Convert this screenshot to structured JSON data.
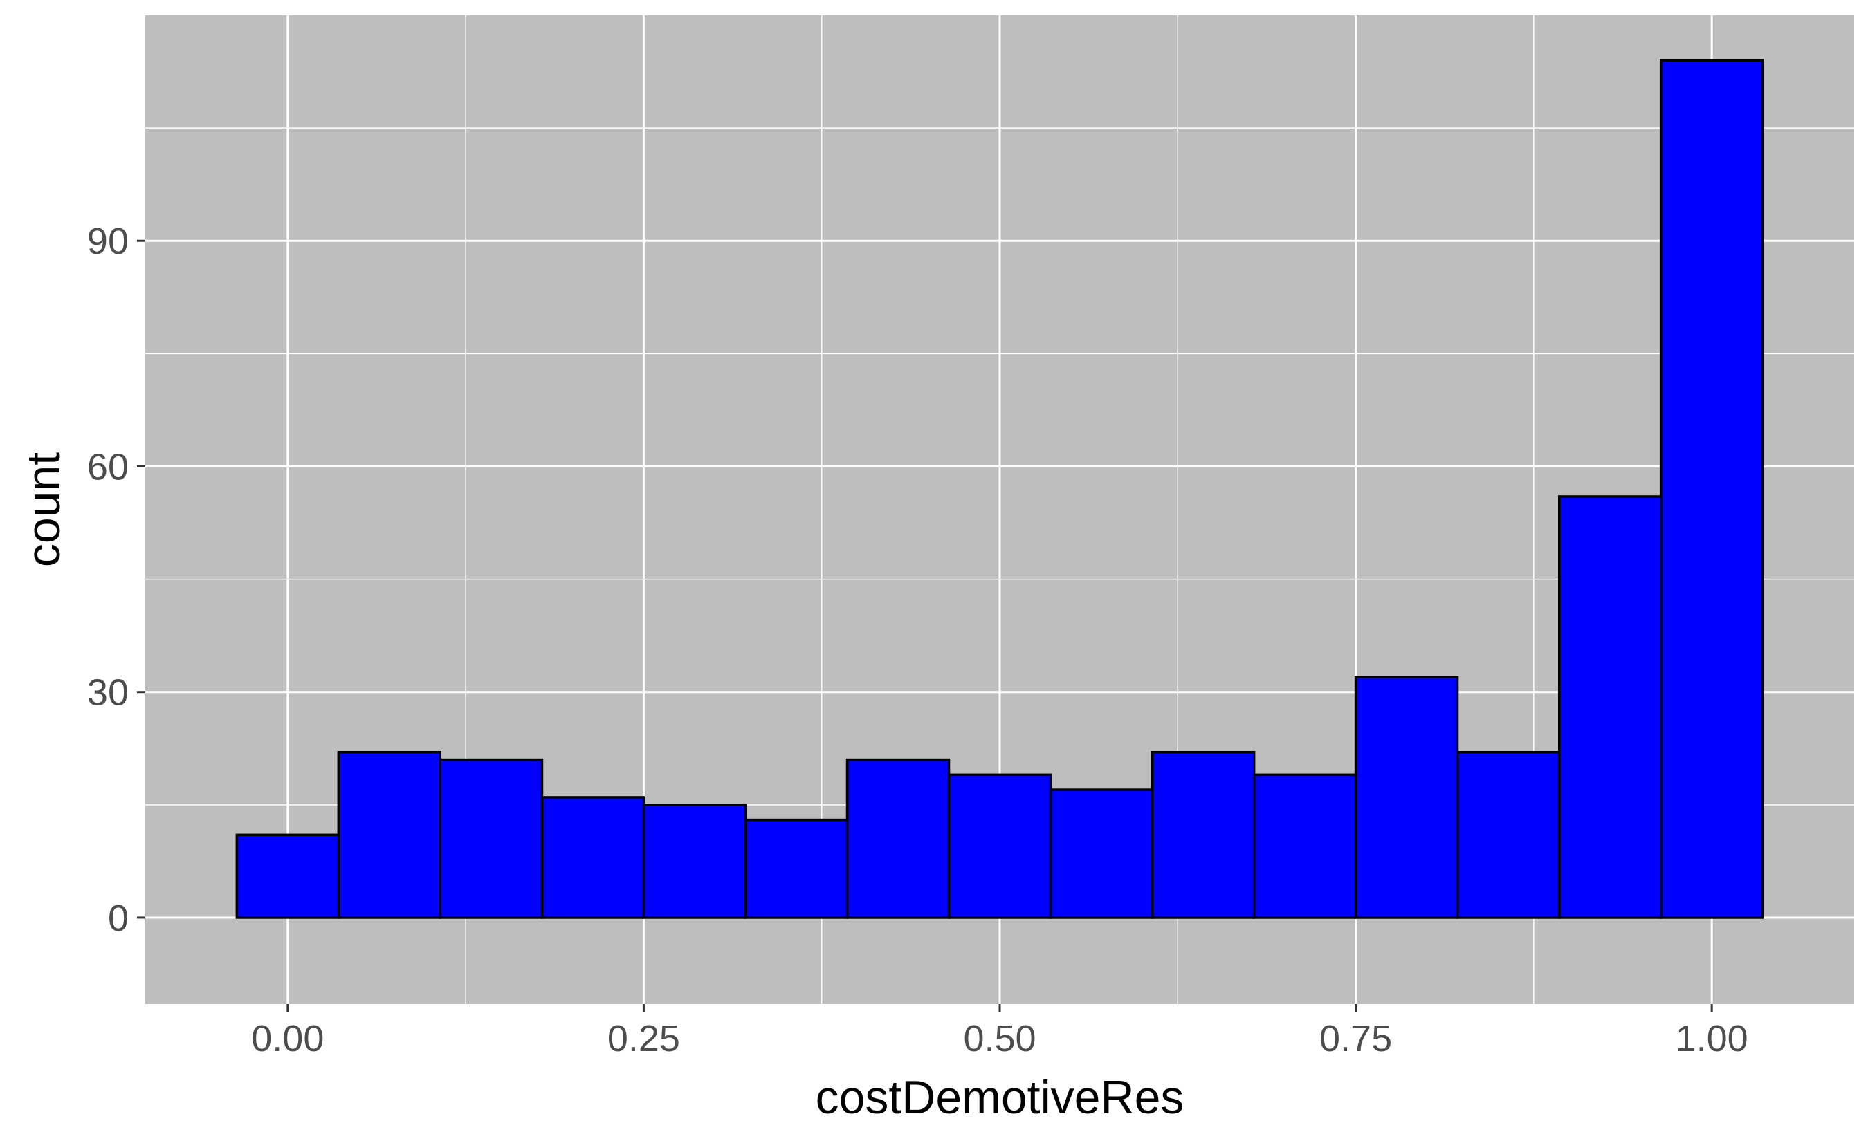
{
  "chart_data": {
    "type": "bar",
    "subtype": "histogram",
    "xlabel": "costDemotiveRes",
    "ylabel": "count",
    "xlim": [
      -0.1,
      1.1
    ],
    "ylim": [
      -11.5,
      120
    ],
    "x_ticks": [
      0,
      0.25,
      0.5,
      0.75,
      1
    ],
    "x_tick_labels": [
      "0.00",
      "0.25",
      "0.50",
      "0.75",
      "1.00"
    ],
    "y_ticks": [
      0,
      30,
      60,
      90
    ],
    "y_tick_labels": [
      "0",
      "30",
      "60",
      "90"
    ],
    "bin_width": 0.0714,
    "bins": [
      {
        "x0": -0.0357,
        "x1": 0.0357,
        "count": 11
      },
      {
        "x0": 0.0357,
        "x1": 0.1071,
        "count": 22
      },
      {
        "x0": 0.1071,
        "x1": 0.1786,
        "count": 21
      },
      {
        "x0": 0.1786,
        "x1": 0.25,
        "count": 16
      },
      {
        "x0": 0.25,
        "x1": 0.3214,
        "count": 15
      },
      {
        "x0": 0.3214,
        "x1": 0.3929,
        "count": 13
      },
      {
        "x0": 0.3929,
        "x1": 0.4643,
        "count": 21
      },
      {
        "x0": 0.4643,
        "x1": 0.5357,
        "count": 19
      },
      {
        "x0": 0.5357,
        "x1": 0.6071,
        "count": 17
      },
      {
        "x0": 0.6071,
        "x1": 0.6786,
        "count": 22
      },
      {
        "x0": 0.6786,
        "x1": 0.75,
        "count": 19
      },
      {
        "x0": 0.75,
        "x1": 0.8214,
        "count": 32
      },
      {
        "x0": 0.8214,
        "x1": 0.8929,
        "count": 22
      },
      {
        "x0": 0.8929,
        "x1": 0.9643,
        "count": 56
      },
      {
        "x0": 0.9643,
        "x1": 1.0357,
        "count": 114
      }
    ],
    "colors": {
      "bar_fill": "#0000ff",
      "bar_stroke": "#000000",
      "panel_background": "#bebebe",
      "grid": "#ffffff"
    },
    "grid": true,
    "legend": "none"
  }
}
